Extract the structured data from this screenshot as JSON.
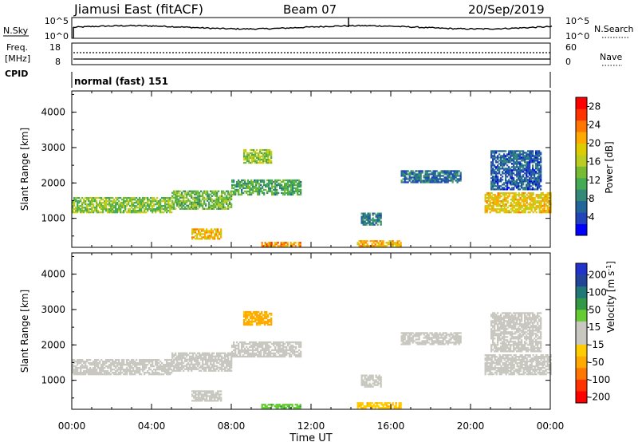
{
  "header": {
    "station": "Jiamusi East (fitACF)",
    "beam": "Beam 07",
    "date": "20/Sep/2019"
  },
  "panels": {
    "nsky_label": "N.Sky",
    "nsky_ticks": [
      "10^5",
      "10^0"
    ],
    "nsearch_label": "N.Search",
    "freq_label_1": "Freq.",
    "freq_label_2": "[MHz]",
    "freq_ticks": [
      "18",
      "8"
    ],
    "nave_label": "Nave",
    "nave_ticks": [
      "60",
      "0"
    ],
    "cpid_label": "CPID",
    "cpid_text": "normal (fast) 151"
  },
  "chart_data": [
    {
      "type": "heatmap",
      "quantity": "Power",
      "colorbar_label": "Power [dB]",
      "colorbar_ticks": [
        4,
        8,
        12,
        16,
        20,
        24,
        28
      ],
      "colorbar_range": [
        0,
        30
      ],
      "colors": [
        "#0000ff",
        "#2244bb",
        "#226699",
        "#338877",
        "#44aa55",
        "#77bb33",
        "#bbcc22",
        "#ddcc00",
        "#ffaa00",
        "#ff7700",
        "#ff3300",
        "#ff0000"
      ],
      "ylabel": "Slant Range [km]",
      "yticks": [
        1000,
        2000,
        3000,
        4000
      ],
      "ylim": [
        180,
        4600
      ],
      "xlim_hours": [
        0,
        24
      ],
      "regions": [
        {
          "t0": 0.0,
          "t1": 5.0,
          "r0": 1150,
          "r1": 1600,
          "level": 14
        },
        {
          "t0": 5.0,
          "t1": 8.0,
          "r0": 1250,
          "r1": 1750,
          "level": 13
        },
        {
          "t0": 8.0,
          "t1": 11.5,
          "r0": 1650,
          "r1": 2100,
          "level": 11
        },
        {
          "t0": 8.6,
          "t1": 10.0,
          "r0": 2550,
          "r1": 2950,
          "level": 15
        },
        {
          "t0": 6.0,
          "t1": 7.5,
          "r0": 400,
          "r1": 700,
          "level": 20
        },
        {
          "t0": 9.5,
          "t1": 11.5,
          "r0": 200,
          "r1": 320,
          "level": 22
        },
        {
          "t0": 14.3,
          "t1": 16.5,
          "r0": 200,
          "r1": 340,
          "level": 21
        },
        {
          "t0": 14.5,
          "t1": 15.5,
          "r0": 800,
          "r1": 1150,
          "level": 8
        },
        {
          "t0": 16.5,
          "t1": 19.5,
          "r0": 2000,
          "r1": 2350,
          "level": 7
        },
        {
          "t0": 20.7,
          "t1": 24.0,
          "r0": 1150,
          "r1": 1700,
          "level": 19
        },
        {
          "t0": 21.0,
          "t1": 23.5,
          "r0": 1800,
          "r1": 2900,
          "level": 6
        }
      ]
    },
    {
      "type": "heatmap",
      "quantity": "Velocity",
      "colorbar_label": "Velocity [m s^-1]",
      "colorbar_ticks": [
        200,
        100,
        50,
        15,
        -15,
        -50,
        -100,
        -200
      ],
      "colors": [
        "#2233cc",
        "#224499",
        "#227777",
        "#339944",
        "#66cc33",
        "#c8c8c0",
        "#c8c8c0",
        "#ffcc00",
        "#ffaa00",
        "#ff7700",
        "#ff3300",
        "#ff0000"
      ],
      "ylabel": "Slant Range [km]",
      "yticks": [
        1000,
        2000,
        3000,
        4000
      ],
      "ylim": [
        180,
        4600
      ],
      "xlim_hours": [
        0,
        24
      ],
      "xlabel": "Time UT",
      "xticks": [
        "00:00",
        "04:00",
        "08:00",
        "12:00",
        "16:00",
        "20:00",
        "00:00"
      ],
      "regions": [
        {
          "t0": 0.0,
          "t1": 5.0,
          "r0": 1150,
          "r1": 1600,
          "velocity": 0
        },
        {
          "t0": 5.0,
          "t1": 8.0,
          "r0": 1250,
          "r1": 1750,
          "velocity": 0
        },
        {
          "t0": 8.0,
          "t1": 11.5,
          "r0": 1650,
          "r1": 2100,
          "velocity": 0
        },
        {
          "t0": 8.6,
          "t1": 10.0,
          "r0": 2550,
          "r1": 2950,
          "velocity": -60
        },
        {
          "t0": 6.0,
          "t1": 7.5,
          "r0": 400,
          "r1": 700,
          "velocity": 0
        },
        {
          "t0": 9.5,
          "t1": 11.5,
          "r0": 200,
          "r1": 320,
          "velocity": 40
        },
        {
          "t0": 14.3,
          "t1": 16.5,
          "r0": 200,
          "r1": 340,
          "velocity": -40
        },
        {
          "t0": 14.5,
          "t1": 15.5,
          "r0": 800,
          "r1": 1150,
          "velocity": 0
        },
        {
          "t0": 16.5,
          "t1": 19.5,
          "r0": 2000,
          "r1": 2350,
          "velocity": 0
        },
        {
          "t0": 20.7,
          "t1": 24.0,
          "r0": 1150,
          "r1": 1700,
          "velocity": 0
        },
        {
          "t0": 21.0,
          "t1": 23.5,
          "r0": 1800,
          "r1": 2900,
          "velocity": 0
        }
      ]
    }
  ]
}
